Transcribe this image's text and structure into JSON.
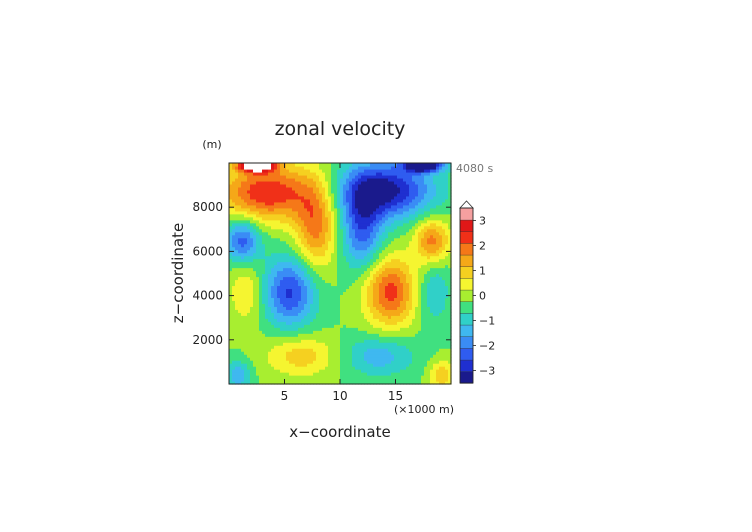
{
  "chart_data": {
    "type": "heatmap",
    "title": "zonal velocity",
    "xlabel": "x−coordinate",
    "ylabel": "z−coordinate",
    "x_unit": "(×1000 m)",
    "y_unit": "(m)",
    "time_label": "4080 s",
    "xlim": [
      0,
      20
    ],
    "ylim": [
      0,
      10000
    ],
    "x_ticks": [
      5,
      10,
      15
    ],
    "y_ticks": [
      2000,
      4000,
      6000,
      8000
    ],
    "colorbar": {
      "levels": [
        -3.5,
        -3,
        -2.5,
        -2,
        -1.5,
        -1,
        -0.5,
        0,
        0.5,
        1,
        1.5,
        2,
        2.5,
        3,
        3.5
      ],
      "colors": [
        "#1a1a8c",
        "#1f2fd0",
        "#2f5cf0",
        "#3a8cf5",
        "#3fb8f0",
        "#30d0c8",
        "#40e080",
        "#a8ee30",
        "#f5f530",
        "#f5d020",
        "#f5a818",
        "#f57818",
        "#f03018",
        "#e01818",
        "#f5a0a0"
      ],
      "tick_values": [
        -3,
        -2,
        -1,
        0,
        1,
        2,
        3
      ],
      "tick_labels": [
        "−3",
        "−2",
        "−1",
        "0",
        "1",
        "2",
        "3"
      ]
    },
    "features": [
      {
        "x": 3.5,
        "z": 8700,
        "amp": 3.0,
        "sx": 3.0,
        "sz": 900
      },
      {
        "x": 7.8,
        "z": 7200,
        "amp": 2.2,
        "sx": 1.3,
        "sz": 1400
      },
      {
        "x": 14.0,
        "z": 8800,
        "amp": -3.3,
        "sx": 3.0,
        "sz": 900
      },
      {
        "x": 12.0,
        "z": 7000,
        "amp": -2.2,
        "sx": 1.3,
        "sz": 1300
      },
      {
        "x": 1.2,
        "z": 6500,
        "amp": -2.3,
        "sx": 1.1,
        "sz": 700
      },
      {
        "x": 18.3,
        "z": 6500,
        "amp": 2.2,
        "sx": 1.1,
        "sz": 700
      },
      {
        "x": 5.5,
        "z": 4200,
        "amp": -2.6,
        "sx": 1.6,
        "sz": 1100
      },
      {
        "x": 14.5,
        "z": 4200,
        "amp": 2.7,
        "sx": 1.6,
        "sz": 1100
      },
      {
        "x": 1.5,
        "z": 4200,
        "amp": 1.0,
        "sx": 1.0,
        "sz": 1000
      },
      {
        "x": 18.5,
        "z": 4200,
        "amp": -1.0,
        "sx": 1.0,
        "sz": 1000
      },
      {
        "x": 6.5,
        "z": 1300,
        "amp": 1.3,
        "sx": 2.3,
        "sz": 650
      },
      {
        "x": 13.5,
        "z": 1300,
        "amp": -1.3,
        "sx": 2.3,
        "sz": 650
      },
      {
        "x": 0.8,
        "z": 400,
        "amp": -1.4,
        "sx": 0.8,
        "sz": 500
      },
      {
        "x": 19.2,
        "z": 400,
        "amp": 1.4,
        "sx": 0.8,
        "sz": 500
      },
      {
        "x": 2.5,
        "z": 9900,
        "amp": 4.0,
        "sx": 1.2,
        "sz": 200
      },
      {
        "x": 17.5,
        "z": 9900,
        "amp": -4.0,
        "sx": 1.2,
        "sz": 200
      }
    ]
  }
}
